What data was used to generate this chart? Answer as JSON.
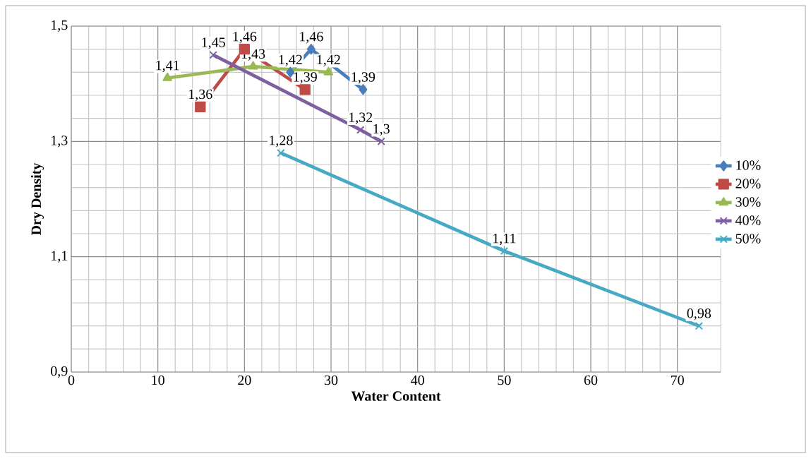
{
  "chart_data": {
    "type": "line",
    "xlabel": "Water Content",
    "ylabel": "Dry Density",
    "xlim": [
      0,
      75
    ],
    "ylim": [
      0.9,
      1.5
    ],
    "xticks": [
      0,
      10,
      20,
      30,
      40,
      50,
      60,
      70
    ],
    "yticks": [
      {
        "value": 0.9,
        "label": "0,9"
      },
      {
        "value": 1.1,
        "label": "1,1"
      },
      {
        "value": 1.3,
        "label": "1,3"
      },
      {
        "value": 1.5,
        "label": "1,5"
      }
    ],
    "grid": true,
    "legend": "right",
    "series": [
      {
        "name": "10%",
        "color": "#4a7ebb",
        "marker": "diamond",
        "x": [
          25.3,
          27.7,
          33.7
        ],
        "values": [
          1.42,
          1.46,
          1.39
        ],
        "value_labels": [
          "1,42",
          "1,46",
          "1,39"
        ]
      },
      {
        "name": "20%",
        "color": "#be4b48",
        "marker": "square",
        "x": [
          14.9,
          20,
          27
        ],
        "values": [
          1.36,
          1.46,
          1.39
        ],
        "value_labels": [
          "1,36",
          "1,46",
          "1,39"
        ]
      },
      {
        "name": "30%",
        "color": "#98b954",
        "marker": "triangle",
        "x": [
          11.1,
          21,
          29.7
        ],
        "values": [
          1.41,
          1.43,
          1.42
        ],
        "value_labels": [
          "1,41",
          "1,43",
          "1,42"
        ]
      },
      {
        "name": "40%",
        "color": "#7d60a0",
        "marker": "cross",
        "x": [
          16.4,
          33.4,
          35.8
        ],
        "values": [
          1.45,
          1.32,
          1.3
        ],
        "value_labels": [
          "1,45",
          "1,32",
          "1,3"
        ]
      },
      {
        "name": "50%",
        "color": "#46aac5",
        "marker": "cross",
        "x": [
          24.2,
          50,
          72.5
        ],
        "values": [
          1.28,
          1.11,
          0.98
        ],
        "value_labels": [
          "1,28",
          "1,11",
          "0,98"
        ]
      }
    ]
  }
}
